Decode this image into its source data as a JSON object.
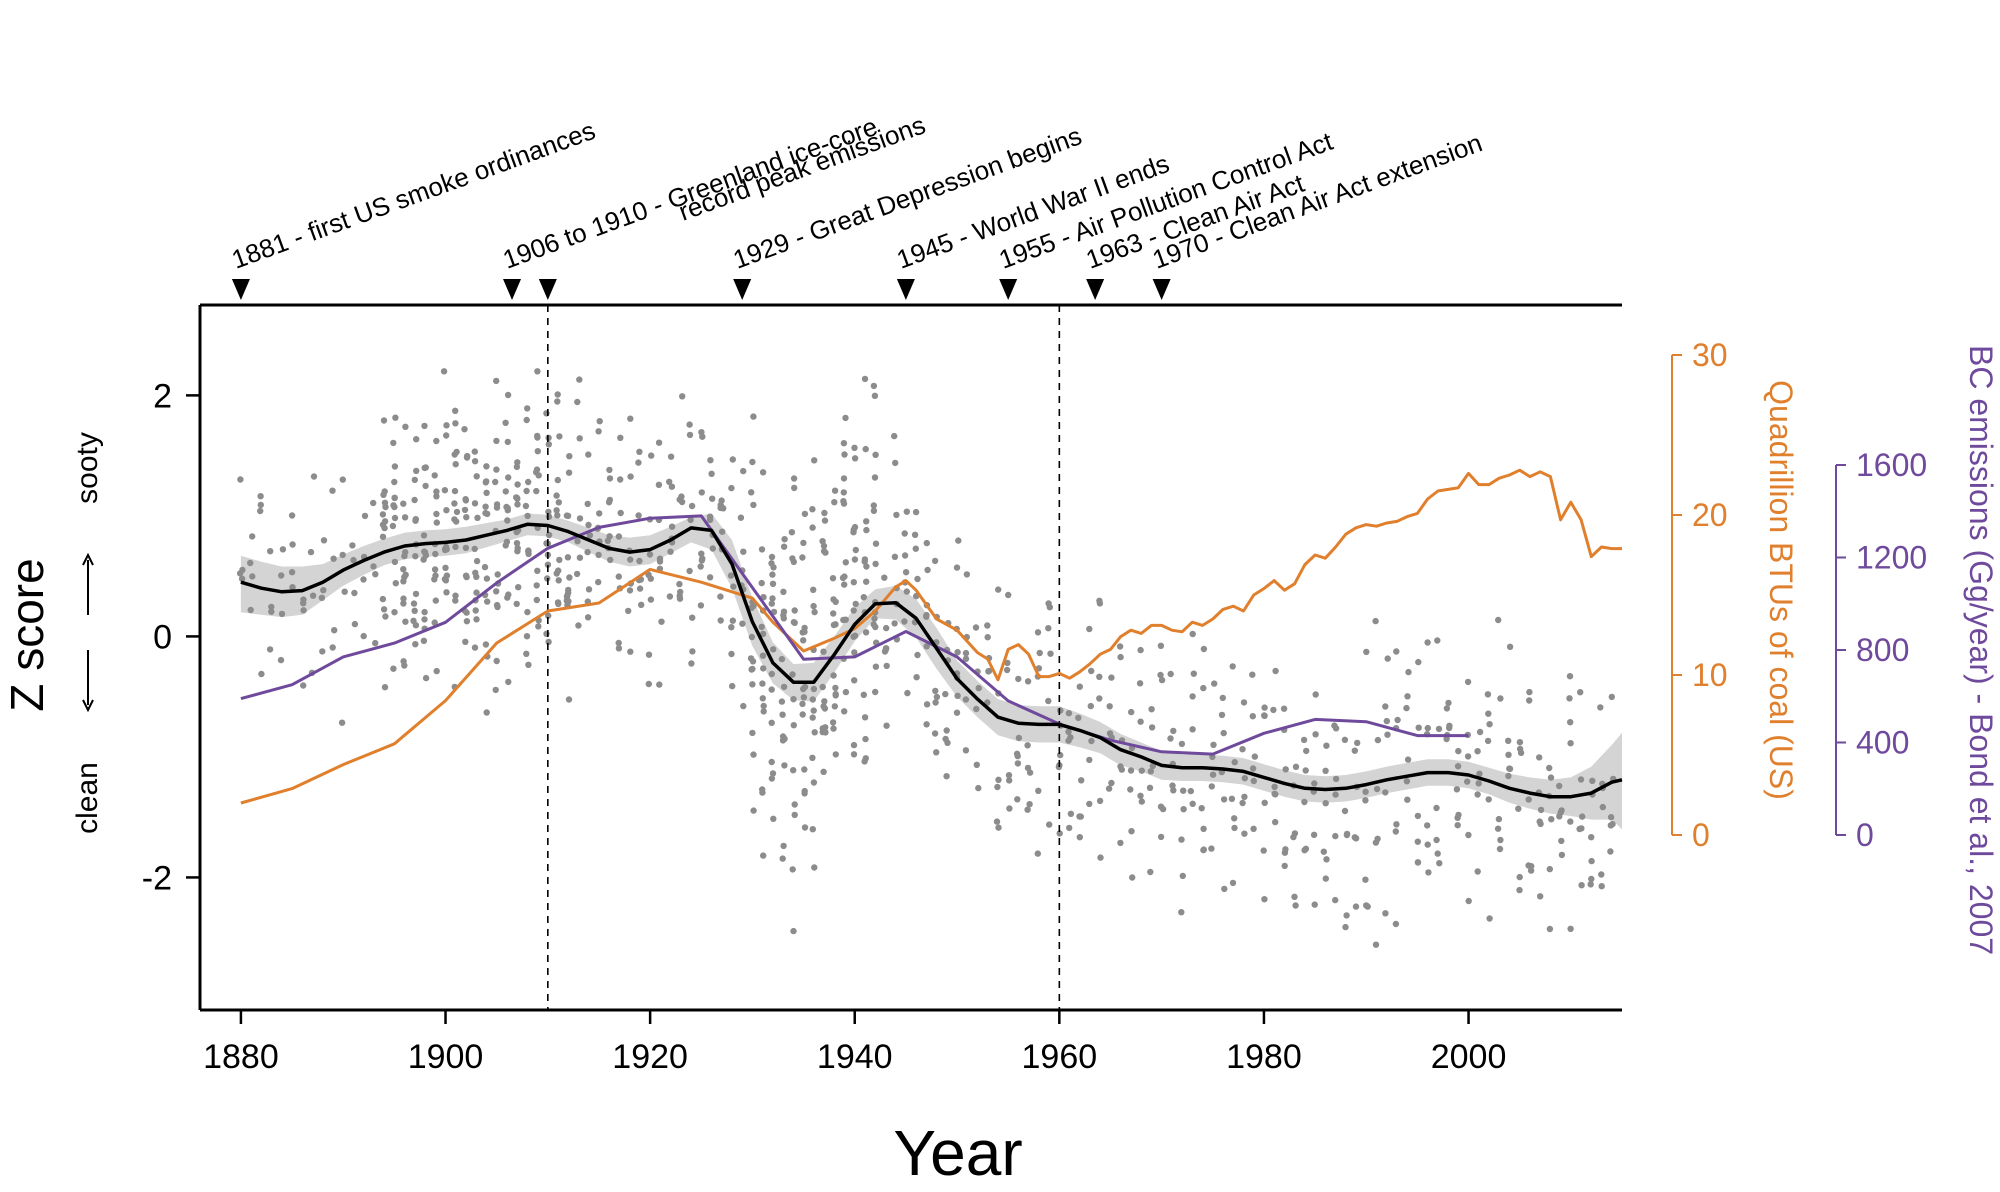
{
  "chart_data": {
    "type": "line",
    "xlabel": "Year",
    "ylabel": "Z score",
    "ylabel_up": "sooty",
    "ylabel_down": "clean",
    "xlim": [
      1876,
      2015
    ],
    "ylim": [
      -3.1,
      2.75
    ],
    "x_ticks": [
      1880,
      1900,
      1920,
      1940,
      1960,
      1980,
      2000
    ],
    "y_ticks": [
      {
        "value": 2,
        "label": "2"
      },
      {
        "value": 0,
        "label": "0"
      },
      {
        "value": -2,
        "label": "-2"
      }
    ],
    "reference_lines_x": [
      1910,
      1960
    ],
    "events": [
      {
        "year": 1880,
        "label": "1881 - first US smoke ordinances"
      },
      {
        "year": 1906.5,
        "label": "1906 to 1910 - Greenland ice-core"
      },
      {
        "year": 1910,
        "label": "record peak emissions"
      },
      {
        "year": 1929,
        "label": "1929 - Great Depression begins"
      },
      {
        "year": 1945,
        "label": "1945 - World War II ends"
      },
      {
        "year": 1955,
        "label": "1955 - Air Pollution Control Act"
      },
      {
        "year": 1963.5,
        "label": "1963 - Clean Air Act"
      },
      {
        "year": 1970,
        "label": "1970 - Clean Air Act extension"
      }
    ],
    "right_axes": [
      {
        "name": "Quadrillion BTUs of coal (US)",
        "color": "#e07f2c",
        "range": [
          0,
          30
        ],
        "ticks": [
          0,
          10,
          20,
          30
        ]
      },
      {
        "name": "BC emissions (Gg/year) - Bond et al., 2007",
        "color": "#6f4a9c",
        "range": [
          0,
          1600
        ],
        "ticks": [
          0,
          400,
          800,
          1200,
          1600
        ]
      }
    ],
    "series": [
      {
        "name": "Z score smooth",
        "color": "#000000",
        "axis": "left",
        "x": [
          1880,
          1882,
          1884,
          1886,
          1888,
          1890,
          1892,
          1894,
          1896,
          1898,
          1900,
          1902,
          1904,
          1906,
          1908,
          1910,
          1912,
          1914,
          1916,
          1918,
          1920,
          1922,
          1924,
          1926,
          1928,
          1930,
          1932,
          1934,
          1936,
          1938,
          1940,
          1942,
          1944,
          1946,
          1948,
          1950,
          1952,
          1954,
          1956,
          1958,
          1960,
          1962,
          1964,
          1966,
          1968,
          1970,
          1972,
          1974,
          1976,
          1978,
          1980,
          1982,
          1984,
          1986,
          1988,
          1990,
          1992,
          1994,
          1996,
          1998,
          2000,
          2002,
          2004,
          2006,
          2008,
          2010,
          2012,
          2014,
          2015
        ],
        "y": [
          0.45,
          0.4,
          0.37,
          0.38,
          0.45,
          0.55,
          0.63,
          0.7,
          0.75,
          0.77,
          0.78,
          0.8,
          0.84,
          0.88,
          0.93,
          0.92,
          0.87,
          0.8,
          0.73,
          0.7,
          0.72,
          0.8,
          0.9,
          0.88,
          0.6,
          0.12,
          -0.22,
          -0.38,
          -0.38,
          -0.15,
          0.1,
          0.27,
          0.28,
          0.15,
          -0.1,
          -0.35,
          -0.52,
          -0.67,
          -0.72,
          -0.73,
          -0.73,
          -0.78,
          -0.84,
          -0.94,
          -1.0,
          -1.07,
          -1.09,
          -1.09,
          -1.1,
          -1.12,
          -1.17,
          -1.22,
          -1.26,
          -1.27,
          -1.26,
          -1.23,
          -1.19,
          -1.16,
          -1.13,
          -1.13,
          -1.15,
          -1.2,
          -1.26,
          -1.3,
          -1.33,
          -1.33,
          -1.3,
          -1.21,
          -1.19
        ],
        "band_upper": [
          0.67,
          0.62,
          0.58,
          0.58,
          0.6,
          0.68,
          0.75,
          0.81,
          0.86,
          0.88,
          0.89,
          0.91,
          0.94,
          0.97,
          1.02,
          1.01,
          0.96,
          0.9,
          0.84,
          0.82,
          0.84,
          0.91,
          0.99,
          1.02,
          0.8,
          0.32,
          -0.05,
          -0.23,
          -0.22,
          0.0,
          0.24,
          0.39,
          0.42,
          0.31,
          0.07,
          -0.2,
          -0.37,
          -0.52,
          -0.57,
          -0.58,
          -0.58,
          -0.64,
          -0.71,
          -0.81,
          -0.88,
          -0.95,
          -0.98,
          -0.98,
          -0.99,
          -1.01,
          -1.06,
          -1.11,
          -1.15,
          -1.16,
          -1.15,
          -1.12,
          -1.08,
          -1.05,
          -1.02,
          -1.02,
          -1.04,
          -1.09,
          -1.14,
          -1.17,
          -1.19,
          -1.17,
          -1.08,
          -0.9,
          -0.8
        ],
        "band_lower": [
          0.2,
          0.18,
          0.16,
          0.18,
          0.3,
          0.42,
          0.51,
          0.59,
          0.64,
          0.66,
          0.67,
          0.69,
          0.74,
          0.79,
          0.84,
          0.83,
          0.78,
          0.7,
          0.62,
          0.58,
          0.6,
          0.69,
          0.78,
          0.72,
          0.4,
          -0.08,
          -0.39,
          -0.53,
          -0.54,
          -0.3,
          -0.04,
          0.15,
          0.14,
          -0.01,
          -0.27,
          -0.5,
          -0.67,
          -0.82,
          -0.87,
          -0.88,
          -0.88,
          -0.92,
          -0.97,
          -1.07,
          -1.12,
          -1.19,
          -1.2,
          -1.2,
          -1.21,
          -1.23,
          -1.28,
          -1.33,
          -1.37,
          -1.38,
          -1.37,
          -1.34,
          -1.3,
          -1.27,
          -1.24,
          -1.24,
          -1.26,
          -1.31,
          -1.38,
          -1.43,
          -1.47,
          -1.49,
          -1.52,
          -1.52,
          -1.6
        ]
      },
      {
        "name": "Quadrillion BTUs of coal (US)",
        "color": "#e07f2c",
        "axis": "coal",
        "x": [
          1880,
          1885,
          1890,
          1895,
          1900,
          1905,
          1910,
          1915,
          1920,
          1925,
          1930,
          1932,
          1935,
          1938,
          1940,
          1942,
          1944,
          1945,
          1946,
          1948,
          1950,
          1952,
          1953,
          1954,
          1955,
          1956,
          1957,
          1958,
          1959,
          1960,
          1961,
          1962,
          1963,
          1964,
          1965,
          1966,
          1967,
          1968,
          1969,
          1970,
          1971,
          1972,
          1973,
          1974,
          1975,
          1976,
          1977,
          1978,
          1979,
          1980,
          1981,
          1982,
          1983,
          1984,
          1985,
          1986,
          1987,
          1988,
          1989,
          1990,
          1991,
          1992,
          1993,
          1994,
          1995,
          1996,
          1997,
          1998,
          1999,
          2000,
          2001,
          2002,
          2003,
          2004,
          2005,
          2006,
          2007,
          2008,
          2009,
          2010,
          2011,
          2012,
          2013,
          2014,
          2015
        ],
        "y": [
          2.0,
          2.9,
          4.4,
          5.7,
          8.4,
          12.0,
          14.0,
          14.5,
          16.6,
          15.8,
          14.8,
          13.3,
          11.5,
          12.3,
          12.9,
          14.0,
          15.5,
          15.9,
          15.3,
          13.5,
          12.8,
          11.4,
          11.0,
          9.7,
          11.6,
          11.9,
          11.3,
          9.9,
          9.9,
          10.1,
          9.8,
          10.2,
          10.7,
          11.3,
          11.6,
          12.4,
          12.8,
          12.6,
          13.1,
          13.1,
          12.8,
          12.7,
          13.3,
          13.1,
          13.5,
          14.1,
          14.3,
          14.0,
          15.0,
          15.4,
          15.9,
          15.3,
          15.7,
          16.9,
          17.5,
          17.3,
          18.0,
          18.8,
          19.2,
          19.4,
          19.3,
          19.5,
          19.6,
          19.9,
          20.1,
          21.0,
          21.5,
          21.6,
          21.7,
          22.6,
          21.9,
          21.9,
          22.3,
          22.5,
          22.8,
          22.4,
          22.7,
          22.4,
          19.7,
          20.8,
          19.7,
          17.4,
          18.0,
          17.9,
          17.9
        ]
      },
      {
        "name": "BC emissions (Gg/year) - Bond et al., 2007",
        "color": "#6f4a9c",
        "axis": "bc",
        "x": [
          1880,
          1885,
          1890,
          1895,
          1900,
          1905,
          1910,
          1915,
          1920,
          1925,
          1930,
          1935,
          1940,
          1945,
          1950,
          1955,
          1960,
          1965,
          1970,
          1975,
          1980,
          1985,
          1990,
          1995,
          2000
        ],
        "y": [
          590,
          650,
          770,
          830,
          920,
          1090,
          1240,
          1330,
          1370,
          1380,
          1070,
          760,
          770,
          880,
          770,
          580,
          480,
          410,
          360,
          350,
          440,
          500,
          490,
          430,
          430
        ]
      }
    ]
  }
}
